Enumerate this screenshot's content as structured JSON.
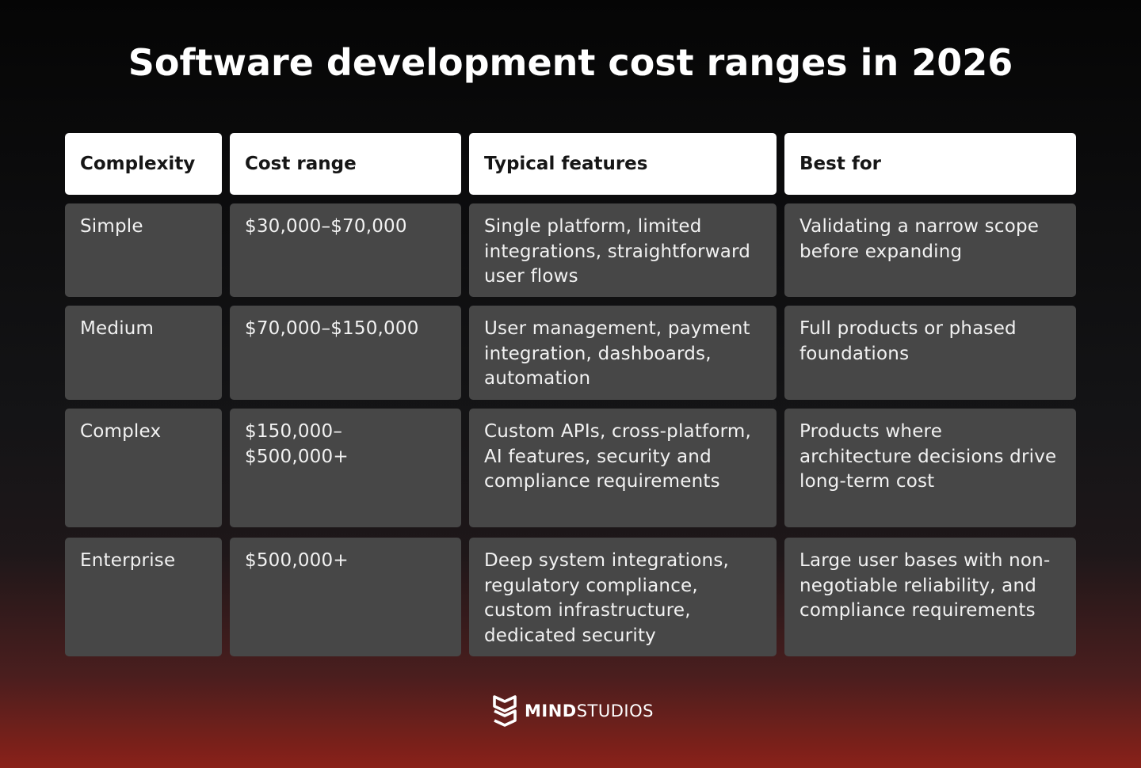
{
  "chart_data": {
    "type": "table",
    "title": "Software development cost ranges in 2026",
    "columns": [
      "Complexity",
      "Cost range",
      "Typical features",
      "Best for"
    ],
    "rows": [
      [
        "Simple",
        "$30,000–$70,000",
        "Single platform, limited integrations, straightforward user flows",
        "Validating a narrow scope before expanding"
      ],
      [
        "Medium",
        "$70,000–$150,000",
        "User management, payment integration, dashboards, automation",
        "Full products or phased foundations"
      ],
      [
        "Complex",
        "$150,000–$500,000+",
        "Custom APIs, cross-platform, AI features, security and compliance requirements",
        "Products where architecture decisions drive long-term cost"
      ],
      [
        "Enterprise",
        "$500,000+",
        "Deep system integrations, regulatory compliance, custom infrastructure, dedicated security",
        "Large user bases with non-negotiable reliability, and compliance requirements"
      ]
    ]
  },
  "brand": {
    "name_bold": "MIND",
    "name_regular": "STUDIOS",
    "logo_icon": "mind-studios-shield-icon"
  },
  "colors": {
    "header_cell": "#ffffff",
    "body_cell": "#474747",
    "accent_gradient_bottom": "#8a2119"
  }
}
